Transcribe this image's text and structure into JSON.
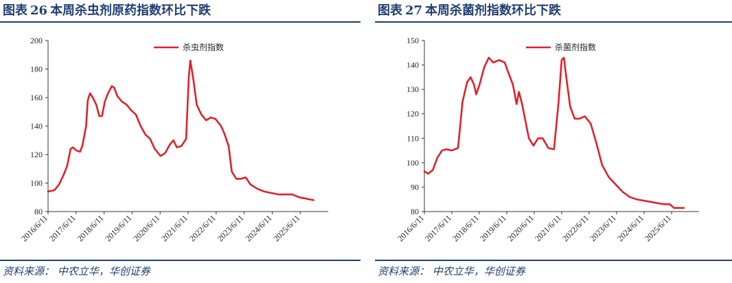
{
  "charts": [
    {
      "figure_label": "图表",
      "figure_no": "26",
      "title": "本周杀虫剂原药指数环比下跌",
      "source": "资料来源：  中农立华，华创证券"
    },
    {
      "figure_label": "图表",
      "figure_no": "27",
      "title": "本周杀菌剂指数环比下跌",
      "source": "资料来源：  中农立华，华创证券"
    }
  ],
  "style": {
    "line_color": "#e0202a",
    "title_color": "#1f3e73"
  },
  "chart_data": [
    {
      "type": "line",
      "title": "",
      "xlabel": "",
      "ylabel": "",
      "ylim": [
        80,
        200
      ],
      "yticks": [
        80,
        100,
        120,
        140,
        160,
        180,
        200
      ],
      "xlim": [
        "2016-06-11",
        "2026-06-11"
      ],
      "xticks": [
        "2016/6/11",
        "2017/6/11",
        "2018/6/11",
        "2019/6/11",
        "2020/6/11",
        "2021/6/11",
        "2022/6/11",
        "2023/6/11",
        "2024/6/11",
        "2025/6/11"
      ],
      "grid": false,
      "legend": "top-center",
      "series": [
        {
          "name": "杀虫剂指数",
          "points": [
            [
              "2016-06-11",
              94
            ],
            [
              "2016-09-01",
              95
            ],
            [
              "2016-11-01",
              99
            ],
            [
              "2017-01-01",
              106
            ],
            [
              "2017-02-15",
              112
            ],
            [
              "2017-04-01",
              124
            ],
            [
              "2017-05-01",
              125
            ],
            [
              "2017-06-11",
              123
            ],
            [
              "2017-08-01",
              122
            ],
            [
              "2017-09-01",
              126
            ],
            [
              "2017-10-20",
              140
            ],
            [
              "2017-11-10",
              158
            ],
            [
              "2017-12-10",
              163
            ],
            [
              "2018-01-15",
              160
            ],
            [
              "2018-03-01",
              155
            ],
            [
              "2018-04-10",
              147
            ],
            [
              "2018-05-15",
              147
            ],
            [
              "2018-06-20",
              157
            ],
            [
              "2018-08-01",
              163
            ],
            [
              "2018-09-20",
              168
            ],
            [
              "2018-10-20",
              167
            ],
            [
              "2018-12-01",
              161
            ],
            [
              "2019-02-01",
              157
            ],
            [
              "2019-04-01",
              155
            ],
            [
              "2019-06-01",
              151
            ],
            [
              "2019-08-01",
              148
            ],
            [
              "2019-10-01",
              140
            ],
            [
              "2019-12-01",
              134
            ],
            [
              "2020-02-01",
              131
            ],
            [
              "2020-04-01",
              124
            ],
            [
              "2020-06-15",
              119
            ],
            [
              "2020-08-15",
              121
            ],
            [
              "2020-10-15",
              127
            ],
            [
              "2020-12-01",
              130
            ],
            [
              "2021-01-15",
              125
            ],
            [
              "2021-03-15",
              126
            ],
            [
              "2021-05-15",
              131
            ],
            [
              "2021-06-20",
              175
            ],
            [
              "2021-07-10",
              186
            ],
            [
              "2021-08-20",
              172
            ],
            [
              "2021-10-01",
              155
            ],
            [
              "2021-12-01",
              148
            ],
            [
              "2022-02-01",
              144
            ],
            [
              "2022-04-01",
              146
            ],
            [
              "2022-06-01",
              145
            ],
            [
              "2022-08-15",
              140
            ],
            [
              "2022-10-01",
              134
            ],
            [
              "2022-11-20",
              126
            ],
            [
              "2023-01-01",
              108
            ],
            [
              "2023-03-01",
              103
            ],
            [
              "2023-05-01",
              103
            ],
            [
              "2023-07-01",
              104
            ],
            [
              "2023-09-01",
              99
            ],
            [
              "2023-12-01",
              96
            ],
            [
              "2024-03-01",
              94
            ],
            [
              "2024-06-01",
              93
            ],
            [
              "2024-09-01",
              92
            ],
            [
              "2024-12-01",
              92
            ],
            [
              "2025-03-01",
              92
            ],
            [
              "2025-06-01",
              90
            ],
            [
              "2025-09-01",
              89
            ],
            [
              "2025-12-01",
              88
            ]
          ]
        }
      ]
    },
    {
      "type": "line",
      "title": "",
      "xlabel": "",
      "ylabel": "",
      "ylim": [
        80,
        150
      ],
      "yticks": [
        80,
        90,
        100,
        110,
        120,
        130,
        140,
        150
      ],
      "xlim": [
        "2016-06-11",
        "2026-06-11"
      ],
      "xticks": [
        "2016/6/11",
        "2017/6/11",
        "2018/6/11",
        "2019/6/11",
        "2020/6/11",
        "2021/6/11",
        "2022/6/11",
        "2023/6/11",
        "2024/6/11",
        "2025/6/11"
      ],
      "grid": false,
      "legend": "top-center",
      "series": [
        {
          "name": "杀菌剂指数",
          "points": [
            [
              "2016-06-11",
              96.5
            ],
            [
              "2016-08-01",
              95.5
            ],
            [
              "2016-10-01",
              97
            ],
            [
              "2016-12-01",
              102
            ],
            [
              "2017-02-01",
              105
            ],
            [
              "2017-04-01",
              105.5
            ],
            [
              "2017-06-11",
              105
            ],
            [
              "2017-09-01",
              106
            ],
            [
              "2017-11-01",
              125
            ],
            [
              "2018-01-01",
              133
            ],
            [
              "2018-02-15",
              135
            ],
            [
              "2018-04-01",
              132
            ],
            [
              "2018-05-01",
              128
            ],
            [
              "2018-06-15",
              132
            ],
            [
              "2018-08-15",
              139
            ],
            [
              "2018-10-15",
              143
            ],
            [
              "2018-12-15",
              141
            ],
            [
              "2019-03-01",
              142
            ],
            [
              "2019-05-15",
              141
            ],
            [
              "2019-07-01",
              137
            ],
            [
              "2019-09-01",
              132
            ],
            [
              "2019-10-20",
              124
            ],
            [
              "2019-11-20",
              129
            ],
            [
              "2020-01-01",
              124
            ],
            [
              "2020-02-15",
              117
            ],
            [
              "2020-04-01",
              110
            ],
            [
              "2020-06-01",
              107
            ],
            [
              "2020-08-01",
              110
            ],
            [
              "2020-10-01",
              110
            ],
            [
              "2020-12-15",
              106
            ],
            [
              "2021-03-01",
              105.5
            ],
            [
              "2021-05-01",
              125
            ],
            [
              "2021-06-10",
              142
            ],
            [
              "2021-07-10",
              143
            ],
            [
              "2021-08-15",
              134
            ],
            [
              "2021-10-01",
              123
            ],
            [
              "2021-12-01",
              118
            ],
            [
              "2022-02-01",
              118
            ],
            [
              "2022-04-15",
              119
            ],
            [
              "2022-07-01",
              116
            ],
            [
              "2022-09-15",
              108
            ],
            [
              "2022-12-01",
              99
            ],
            [
              "2023-03-01",
              94
            ],
            [
              "2023-06-01",
              91
            ],
            [
              "2023-09-01",
              88
            ],
            [
              "2023-12-01",
              86
            ],
            [
              "2024-03-01",
              85
            ],
            [
              "2024-06-01",
              84.5
            ],
            [
              "2024-09-01",
              84
            ],
            [
              "2024-12-01",
              83.5
            ],
            [
              "2025-03-01",
              83
            ],
            [
              "2025-05-15",
              83
            ],
            [
              "2025-07-15",
              81.5
            ],
            [
              "2025-09-15",
              81.5
            ],
            [
              "2025-11-20",
              81.5
            ]
          ]
        }
      ]
    }
  ]
}
